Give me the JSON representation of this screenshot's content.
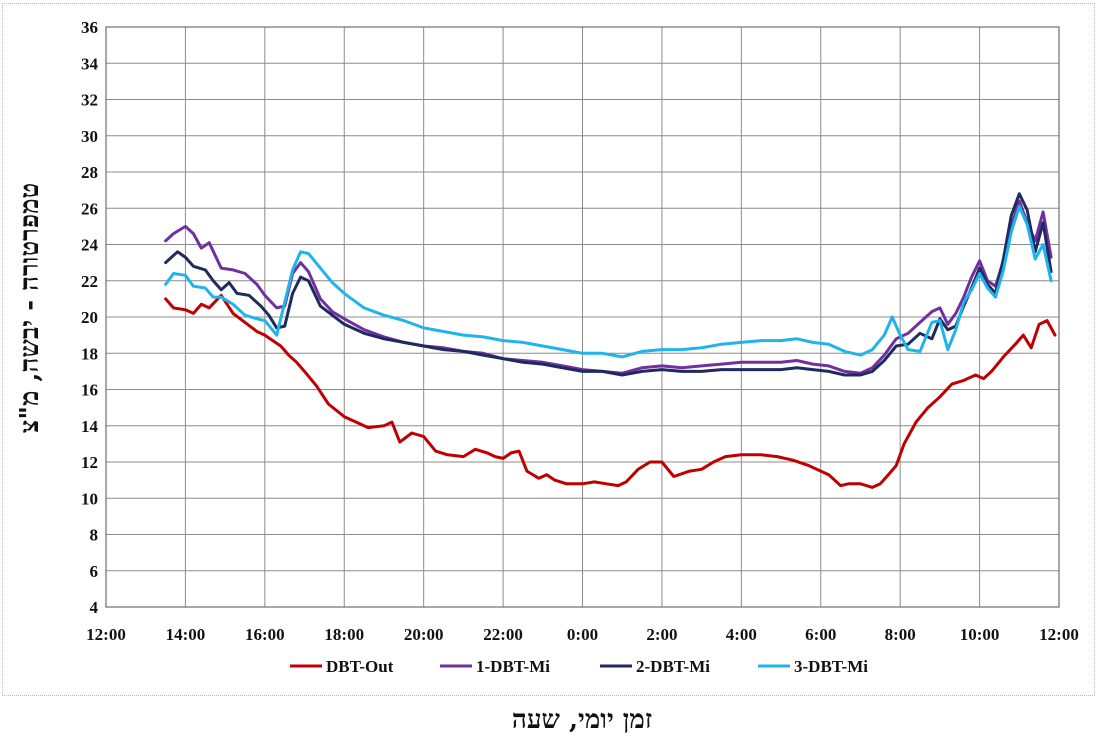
{
  "chart_data": {
    "type": "line",
    "xlabel": "זמן יומי, שעה",
    "ylabel": "טמפרטורה - יבשה, מ\"צ",
    "x_ticks": [
      "12:00",
      "14:00",
      "16:00",
      "18:00",
      "20:00",
      "22:00",
      "0:00",
      "2:00",
      "4:00",
      "6:00",
      "8:00",
      "10:00",
      "12:00"
    ],
    "y_ticks": [
      4,
      6,
      8,
      10,
      12,
      14,
      16,
      18,
      20,
      22,
      24,
      26,
      28,
      30,
      32,
      34,
      36
    ],
    "ylim": [
      4,
      36
    ],
    "xlim_hours": [
      12,
      36
    ],
    "grid": true,
    "legend_position": "bottom",
    "series": [
      {
        "name": "DBT-Out",
        "color": "#c00000",
        "points": [
          [
            13.5,
            21.0
          ],
          [
            13.7,
            20.5
          ],
          [
            14.0,
            20.4
          ],
          [
            14.2,
            20.2
          ],
          [
            14.4,
            20.7
          ],
          [
            14.6,
            20.5
          ],
          [
            14.9,
            21.2
          ],
          [
            15.2,
            20.2
          ],
          [
            15.5,
            19.7
          ],
          [
            15.8,
            19.2
          ],
          [
            16.0,
            19.0
          ],
          [
            16.2,
            18.7
          ],
          [
            16.4,
            18.4
          ],
          [
            16.6,
            17.9
          ],
          [
            16.8,
            17.5
          ],
          [
            17.0,
            17.0
          ],
          [
            17.3,
            16.2
          ],
          [
            17.6,
            15.2
          ],
          [
            18.0,
            14.5
          ],
          [
            18.3,
            14.2
          ],
          [
            18.6,
            13.9
          ],
          [
            19.0,
            14.0
          ],
          [
            19.2,
            14.2
          ],
          [
            19.4,
            13.1
          ],
          [
            19.7,
            13.6
          ],
          [
            20.0,
            13.4
          ],
          [
            20.3,
            12.6
          ],
          [
            20.6,
            12.4
          ],
          [
            21.0,
            12.3
          ],
          [
            21.3,
            12.7
          ],
          [
            21.6,
            12.5
          ],
          [
            21.8,
            12.3
          ],
          [
            22.0,
            12.2
          ],
          [
            22.2,
            12.5
          ],
          [
            22.4,
            12.6
          ],
          [
            22.6,
            11.5
          ],
          [
            22.9,
            11.1
          ],
          [
            23.1,
            11.3
          ],
          [
            23.3,
            11.0
          ],
          [
            23.6,
            10.8
          ],
          [
            24.0,
            10.8
          ],
          [
            24.3,
            10.9
          ],
          [
            24.6,
            10.8
          ],
          [
            24.9,
            10.7
          ],
          [
            25.1,
            10.9
          ],
          [
            25.4,
            11.6
          ],
          [
            25.7,
            12.0
          ],
          [
            26.0,
            12.0
          ],
          [
            26.3,
            11.2
          ],
          [
            26.7,
            11.5
          ],
          [
            27.0,
            11.6
          ],
          [
            27.3,
            12.0
          ],
          [
            27.6,
            12.3
          ],
          [
            28.0,
            12.4
          ],
          [
            28.5,
            12.4
          ],
          [
            28.9,
            12.3
          ],
          [
            29.3,
            12.1
          ],
          [
            29.7,
            11.8
          ],
          [
            30.2,
            11.3
          ],
          [
            30.5,
            10.7
          ],
          [
            30.7,
            10.8
          ],
          [
            31.0,
            10.8
          ],
          [
            31.3,
            10.6
          ],
          [
            31.5,
            10.8
          ],
          [
            31.7,
            11.3
          ],
          [
            31.9,
            11.8
          ],
          [
            32.1,
            13.0
          ],
          [
            32.4,
            14.2
          ],
          [
            32.7,
            15.0
          ],
          [
            33.0,
            15.6
          ],
          [
            33.3,
            16.3
          ],
          [
            33.6,
            16.5
          ],
          [
            33.9,
            16.8
          ],
          [
            34.1,
            16.6
          ],
          [
            34.3,
            17.0
          ],
          [
            34.6,
            17.8
          ],
          [
            34.9,
            18.5
          ],
          [
            35.1,
            19.0
          ],
          [
            35.3,
            18.3
          ],
          [
            35.5,
            19.6
          ],
          [
            35.7,
            19.8
          ],
          [
            35.9,
            19.0
          ]
        ]
      },
      {
        "name": "1-DBT-Mi",
        "color": "#7030a0",
        "points": [
          [
            13.5,
            24.2
          ],
          [
            13.7,
            24.6
          ],
          [
            14.0,
            25.0
          ],
          [
            14.2,
            24.6
          ],
          [
            14.4,
            23.8
          ],
          [
            14.6,
            24.1
          ],
          [
            14.9,
            22.7
          ],
          [
            15.2,
            22.6
          ],
          [
            15.5,
            22.4
          ],
          [
            15.8,
            21.8
          ],
          [
            16.0,
            21.2
          ],
          [
            16.3,
            20.5
          ],
          [
            16.5,
            20.6
          ],
          [
            16.7,
            22.4
          ],
          [
            16.9,
            23.0
          ],
          [
            17.1,
            22.5
          ],
          [
            17.4,
            21.0
          ],
          [
            17.7,
            20.3
          ],
          [
            18.0,
            19.9
          ],
          [
            18.5,
            19.3
          ],
          [
            19.0,
            18.9
          ],
          [
            19.5,
            18.6
          ],
          [
            20.0,
            18.4
          ],
          [
            20.5,
            18.3
          ],
          [
            21.0,
            18.1
          ],
          [
            21.5,
            18.0
          ],
          [
            22.0,
            17.7
          ],
          [
            22.5,
            17.6
          ],
          [
            23.0,
            17.5
          ],
          [
            23.5,
            17.3
          ],
          [
            24.0,
            17.1
          ],
          [
            24.5,
            17.0
          ],
          [
            25.0,
            16.9
          ],
          [
            25.5,
            17.2
          ],
          [
            26.0,
            17.3
          ],
          [
            26.5,
            17.2
          ],
          [
            27.0,
            17.3
          ],
          [
            27.5,
            17.4
          ],
          [
            28.0,
            17.5
          ],
          [
            28.5,
            17.5
          ],
          [
            29.0,
            17.5
          ],
          [
            29.4,
            17.6
          ],
          [
            29.8,
            17.4
          ],
          [
            30.2,
            17.3
          ],
          [
            30.6,
            17.0
          ],
          [
            31.0,
            16.9
          ],
          [
            31.3,
            17.2
          ],
          [
            31.6,
            17.9
          ],
          [
            31.9,
            18.8
          ],
          [
            32.2,
            19.1
          ],
          [
            32.5,
            19.7
          ],
          [
            32.8,
            20.3
          ],
          [
            33.0,
            20.5
          ],
          [
            33.2,
            19.6
          ],
          [
            33.4,
            20.2
          ],
          [
            33.6,
            21.1
          ],
          [
            33.8,
            22.2
          ],
          [
            34.0,
            23.1
          ],
          [
            34.2,
            22.0
          ],
          [
            34.4,
            21.7
          ],
          [
            34.6,
            23.1
          ],
          [
            34.8,
            25.0
          ],
          [
            35.0,
            26.4
          ],
          [
            35.2,
            25.2
          ],
          [
            35.4,
            24.2
          ],
          [
            35.6,
            25.8
          ],
          [
            35.8,
            23.3
          ]
        ]
      },
      {
        "name": "2-DBT-Mi",
        "color": "#1f2a5e",
        "points": [
          [
            13.5,
            23.0
          ],
          [
            13.8,
            23.6
          ],
          [
            14.0,
            23.3
          ],
          [
            14.2,
            22.8
          ],
          [
            14.5,
            22.6
          ],
          [
            14.7,
            22.0
          ],
          [
            14.9,
            21.5
          ],
          [
            15.1,
            21.9
          ],
          [
            15.3,
            21.3
          ],
          [
            15.6,
            21.2
          ],
          [
            15.9,
            20.6
          ],
          [
            16.1,
            20.1
          ],
          [
            16.3,
            19.4
          ],
          [
            16.5,
            19.5
          ],
          [
            16.7,
            21.3
          ],
          [
            16.9,
            22.2
          ],
          [
            17.1,
            22.0
          ],
          [
            17.4,
            20.6
          ],
          [
            17.7,
            20.1
          ],
          [
            18.0,
            19.6
          ],
          [
            18.5,
            19.1
          ],
          [
            19.0,
            18.8
          ],
          [
            19.5,
            18.6
          ],
          [
            20.0,
            18.4
          ],
          [
            20.5,
            18.2
          ],
          [
            21.0,
            18.1
          ],
          [
            21.5,
            17.9
          ],
          [
            22.0,
            17.7
          ],
          [
            22.5,
            17.5
          ],
          [
            23.0,
            17.4
          ],
          [
            23.5,
            17.2
          ],
          [
            24.0,
            17.0
          ],
          [
            24.5,
            17.0
          ],
          [
            25.0,
            16.8
          ],
          [
            25.5,
            17.0
          ],
          [
            26.0,
            17.1
          ],
          [
            26.5,
            17.0
          ],
          [
            27.0,
            17.0
          ],
          [
            27.5,
            17.1
          ],
          [
            28.0,
            17.1
          ],
          [
            28.5,
            17.1
          ],
          [
            29.0,
            17.1
          ],
          [
            29.4,
            17.2
          ],
          [
            29.8,
            17.1
          ],
          [
            30.2,
            17.0
          ],
          [
            30.6,
            16.8
          ],
          [
            31.0,
            16.8
          ],
          [
            31.3,
            17.0
          ],
          [
            31.6,
            17.6
          ],
          [
            31.9,
            18.4
          ],
          [
            32.2,
            18.5
          ],
          [
            32.5,
            19.1
          ],
          [
            32.8,
            18.8
          ],
          [
            33.0,
            19.9
          ],
          [
            33.2,
            19.3
          ],
          [
            33.4,
            19.5
          ],
          [
            33.6,
            20.6
          ],
          [
            33.8,
            21.6
          ],
          [
            34.0,
            22.7
          ],
          [
            34.2,
            21.8
          ],
          [
            34.4,
            21.3
          ],
          [
            34.6,
            23.2
          ],
          [
            34.8,
            25.6
          ],
          [
            35.0,
            26.8
          ],
          [
            35.2,
            25.9
          ],
          [
            35.4,
            23.6
          ],
          [
            35.6,
            25.2
          ],
          [
            35.8,
            22.5
          ]
        ]
      },
      {
        "name": "3-DBT-Mi",
        "color": "#1fb4ec",
        "points": [
          [
            13.5,
            21.8
          ],
          [
            13.7,
            22.4
          ],
          [
            14.0,
            22.3
          ],
          [
            14.2,
            21.7
          ],
          [
            14.5,
            21.6
          ],
          [
            14.7,
            21.1
          ],
          [
            14.9,
            21.1
          ],
          [
            15.2,
            20.7
          ],
          [
            15.5,
            20.1
          ],
          [
            15.8,
            19.9
          ],
          [
            16.0,
            19.8
          ],
          [
            16.3,
            19.0
          ],
          [
            16.5,
            20.8
          ],
          [
            16.7,
            22.6
          ],
          [
            16.9,
            23.6
          ],
          [
            17.1,
            23.5
          ],
          [
            17.4,
            22.7
          ],
          [
            17.7,
            21.9
          ],
          [
            18.0,
            21.3
          ],
          [
            18.5,
            20.5
          ],
          [
            19.0,
            20.1
          ],
          [
            19.5,
            19.8
          ],
          [
            20.0,
            19.4
          ],
          [
            20.5,
            19.2
          ],
          [
            21.0,
            19.0
          ],
          [
            21.5,
            18.9
          ],
          [
            22.0,
            18.7
          ],
          [
            22.5,
            18.6
          ],
          [
            23.0,
            18.4
          ],
          [
            23.5,
            18.2
          ],
          [
            24.0,
            18.0
          ],
          [
            24.5,
            18.0
          ],
          [
            25.0,
            17.8
          ],
          [
            25.5,
            18.1
          ],
          [
            26.0,
            18.2
          ],
          [
            26.5,
            18.2
          ],
          [
            27.0,
            18.3
          ],
          [
            27.5,
            18.5
          ],
          [
            28.0,
            18.6
          ],
          [
            28.5,
            18.7
          ],
          [
            29.0,
            18.7
          ],
          [
            29.4,
            18.8
          ],
          [
            29.8,
            18.6
          ],
          [
            30.2,
            18.5
          ],
          [
            30.6,
            18.1
          ],
          [
            31.0,
            17.9
          ],
          [
            31.3,
            18.2
          ],
          [
            31.6,
            19.0
          ],
          [
            31.8,
            20.0
          ],
          [
            32.0,
            19.0
          ],
          [
            32.2,
            18.2
          ],
          [
            32.5,
            18.1
          ],
          [
            32.8,
            19.7
          ],
          [
            33.0,
            19.8
          ],
          [
            33.2,
            18.2
          ],
          [
            33.4,
            19.3
          ],
          [
            33.6,
            20.8
          ],
          [
            33.8,
            21.5
          ],
          [
            34.0,
            22.4
          ],
          [
            34.2,
            21.6
          ],
          [
            34.4,
            21.1
          ],
          [
            34.6,
            22.6
          ],
          [
            34.8,
            24.7
          ],
          [
            35.0,
            26.1
          ],
          [
            35.2,
            25.1
          ],
          [
            35.4,
            23.2
          ],
          [
            35.6,
            24.0
          ],
          [
            35.8,
            22.0
          ]
        ]
      }
    ]
  }
}
